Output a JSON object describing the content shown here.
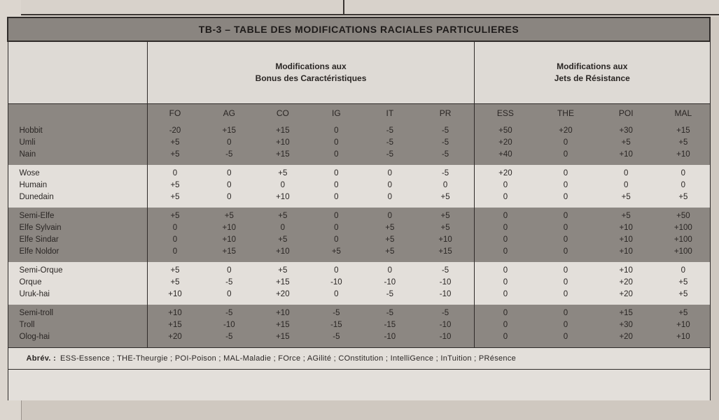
{
  "title": "TB-3 – TABLE DES MODIFICATIONS RACIALES PARTICULIERES",
  "group1": {
    "line1": "Modifications aux",
    "line2": "Bonus des Caractéristiques"
  },
  "group2": {
    "line1": "Modifications aux",
    "line2": "Jets de Résistance"
  },
  "columns": [
    "FO",
    "AG",
    "CO",
    "IG",
    "IT",
    "PR",
    "ESS",
    "THE",
    "POI",
    "MAL"
  ],
  "groups": [
    {
      "shade": "dark",
      "names": [
        "Hobbit",
        "Umli",
        "Nain"
      ],
      "cols": [
        [
          "-20",
          "+5",
          "+5"
        ],
        [
          "+15",
          "0",
          "-5"
        ],
        [
          "+15",
          "+10",
          "+15"
        ],
        [
          "0",
          "0",
          "0"
        ],
        [
          "-5",
          "-5",
          "-5"
        ],
        [
          "-5",
          "-5",
          "-5"
        ],
        [
          "+50",
          "+20",
          "+40"
        ],
        [
          "+20",
          "0",
          "0"
        ],
        [
          "+30",
          "+5",
          "+10"
        ],
        [
          "+15",
          "+5",
          "+10"
        ]
      ]
    },
    {
      "shade": "light",
      "names": [
        "Wose",
        "Humain",
        "Dunedain"
      ],
      "cols": [
        [
          "0",
          "+5",
          "+5"
        ],
        [
          "0",
          "0",
          "0"
        ],
        [
          "+5",
          "0",
          "+10"
        ],
        [
          "0",
          "0",
          "0"
        ],
        [
          "0",
          "0",
          "0"
        ],
        [
          "-5",
          "0",
          "+5"
        ],
        [
          "+20",
          "0",
          "0"
        ],
        [
          "0",
          "0",
          "0"
        ],
        [
          "0",
          "0",
          "+5"
        ],
        [
          "0",
          "0",
          "+5"
        ]
      ]
    },
    {
      "shade": "dark",
      "names": [
        "Semi-Elfe",
        "Elfe Sylvain",
        "Elfe Sindar",
        "Elfe Noldor"
      ],
      "cols": [
        [
          "+5",
          "0",
          "0",
          "0"
        ],
        [
          "+5",
          "+10",
          "+10",
          "+15"
        ],
        [
          "+5",
          "0",
          "+5",
          "+10"
        ],
        [
          "0",
          "0",
          "0",
          "+5"
        ],
        [
          "0",
          "+5",
          "+5",
          "+5"
        ],
        [
          "+5",
          "+5",
          "+10",
          "+15"
        ],
        [
          "0",
          "0",
          "0",
          "0"
        ],
        [
          "0",
          "0",
          "0",
          "0"
        ],
        [
          "+5",
          "+10",
          "+10",
          "+10"
        ],
        [
          "+50",
          "+100",
          "+100",
          "+100"
        ]
      ]
    },
    {
      "shade": "light",
      "names": [
        "Semi-Orque",
        "Orque",
        "Uruk-hai"
      ],
      "cols": [
        [
          "+5",
          "+5",
          "+10"
        ],
        [
          "0",
          "-5",
          "0"
        ],
        [
          "+5",
          "+15",
          "+20"
        ],
        [
          "0",
          "-10",
          "0"
        ],
        [
          "0",
          "-10",
          "-5"
        ],
        [
          "-5",
          "-10",
          "-10"
        ],
        [
          "0",
          "0",
          "0"
        ],
        [
          "0",
          "0",
          "0"
        ],
        [
          "+10",
          "+20",
          "+20"
        ],
        [
          "0",
          "+5",
          "+5"
        ]
      ]
    },
    {
      "shade": "dark",
      "names": [
        "Semi-troll",
        "Troll",
        "Olog-hai"
      ],
      "cols": [
        [
          "+10",
          "+15",
          "+20"
        ],
        [
          "-5",
          "-10",
          "-5"
        ],
        [
          "+10",
          "+15",
          "+15"
        ],
        [
          "-5",
          "-15",
          "-5"
        ],
        [
          "-5",
          "-15",
          "-10"
        ],
        [
          "-5",
          "-10",
          "-10"
        ],
        [
          "0",
          "0",
          "0"
        ],
        [
          "0",
          "0",
          "0"
        ],
        [
          "+15",
          "+30",
          "+20"
        ],
        [
          "+5",
          "+10",
          "+10"
        ]
      ]
    }
  ],
  "footer": {
    "label": "Abrév. :",
    "text": "ESS-Essence ; THE-Theurgie ; POI-Poison ; MAL-Maladie ; FOrce ; AGilité ; COnstitution ; IntelliGence ; InTuition ; PRésence"
  }
}
